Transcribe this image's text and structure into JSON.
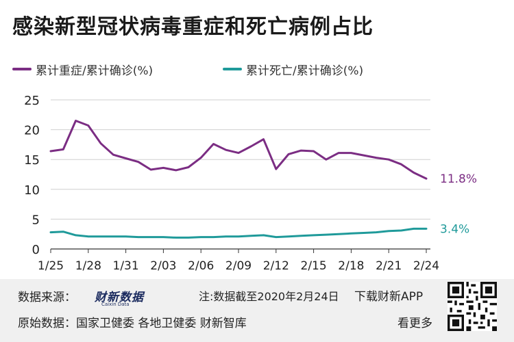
{
  "title": "感染新型冠状病毒重症和死亡病例占比",
  "legend": {
    "severe": "累计重症/累计确诊(%)",
    "death": "累计死亡/累计确诊(%)"
  },
  "colors": {
    "severe": "#7b2d83",
    "death": "#1f9a9a"
  },
  "chart_data": {
    "type": "line",
    "title": "感染新型冠状病毒重症和死亡病例占比",
    "x": [
      "1/25",
      "1/26",
      "1/27",
      "1/28",
      "1/29",
      "1/30",
      "1/31",
      "2/01",
      "2/02",
      "2/03",
      "2/04",
      "2/05",
      "2/06",
      "2/07",
      "2/08",
      "2/09",
      "2/10",
      "2/11",
      "2/12",
      "2/13",
      "2/14",
      "2/15",
      "2/16",
      "2/17",
      "2/18",
      "2/19",
      "2/20",
      "2/21",
      "2/22",
      "2/23",
      "2/24"
    ],
    "x_tick_labels": [
      "1/25",
      "1/28",
      "1/31",
      "2/03",
      "2/06",
      "2/09",
      "2/12",
      "2/15",
      "2/18",
      "2/21",
      "2/24"
    ],
    "ylim": [
      0,
      25
    ],
    "y_ticks": [
      0,
      5,
      10,
      15,
      20,
      25
    ],
    "grid": true,
    "series": [
      {
        "name": "累计重症/累计确诊(%)",
        "values": [
          16.4,
          16.7,
          21.5,
          20.7,
          17.7,
          15.8,
          15.2,
          14.6,
          13.3,
          13.6,
          13.2,
          13.7,
          15.3,
          17.6,
          16.6,
          16.1,
          17.2,
          18.4,
          13.4,
          15.9,
          16.5,
          16.4,
          15.0,
          16.1,
          16.1,
          15.7,
          15.3,
          15.0,
          14.2,
          12.8,
          11.8
        ],
        "end_label": "11.8%"
      },
      {
        "name": "累计死亡/累计确诊(%)",
        "values": [
          2.8,
          2.9,
          2.3,
          2.1,
          2.1,
          2.1,
          2.1,
          2.0,
          2.0,
          2.0,
          1.9,
          1.9,
          2.0,
          2.0,
          2.1,
          2.1,
          2.2,
          2.3,
          2.0,
          2.1,
          2.2,
          2.3,
          2.4,
          2.5,
          2.6,
          2.7,
          2.8,
          3.0,
          3.1,
          3.4,
          3.4
        ],
        "end_label": "3.4%"
      }
    ]
  },
  "footer": {
    "source_label": "数据来源：",
    "brand": "财新数据",
    "brand_sub": "Caixin Data",
    "note": "注:数据截至2020年2月24日",
    "download": "下载财新APP",
    "origin": "原始数据：国家卫健委 各地卫健委 财新智库",
    "more": "看更多"
  }
}
